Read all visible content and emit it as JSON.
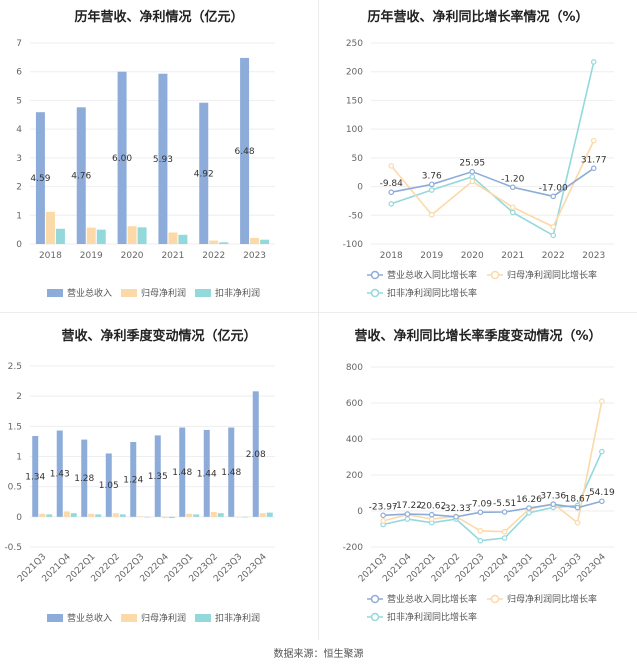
{
  "source_label": "数据来源：恒生聚源",
  "colors": {
    "revenue": "#8eacd9",
    "net_profit": "#fcd9a8",
    "deducted_profit": "#93d9dc",
    "axis_text": "#666666",
    "grid": "#eeeeee",
    "label": "#333333"
  },
  "chart_data": [
    {
      "type": "bar",
      "title": "历年营收、净利情况（亿元）",
      "categories": [
        "2018",
        "2019",
        "2020",
        "2021",
        "2022",
        "2023"
      ],
      "ylim": [
        0,
        7
      ],
      "yticks": [
        "0",
        "1",
        "2",
        "3",
        "4",
        "5",
        "6",
        "7"
      ],
      "series": [
        {
          "name": "营业总收入",
          "values": [
            4.59,
            4.76,
            6.0,
            5.93,
            4.92,
            6.48
          ]
        },
        {
          "name": "归母净利润",
          "values": [
            1.12,
            0.57,
            0.62,
            0.4,
            0.12,
            0.21
          ]
        },
        {
          "name": "扣非净利润",
          "values": [
            0.53,
            0.5,
            0.58,
            0.32,
            0.06,
            0.15
          ]
        }
      ],
      "data_labels": [
        "4.59",
        "4.76",
        "6.00",
        "5.93",
        "4.92",
        "6.48"
      ]
    },
    {
      "type": "line",
      "title": "历年营收、净利同比增长率情况（%）",
      "categories": [
        "2018",
        "2019",
        "2020",
        "2021",
        "2022",
        "2023"
      ],
      "ylim": [
        -100,
        250
      ],
      "yticks": [
        "-100",
        "-50",
        "0",
        "50",
        "100",
        "150",
        "200",
        "250"
      ],
      "series": [
        {
          "name": "营业总收入同比增长率",
          "values": [
            -9.84,
            3.76,
            25.95,
            -1.2,
            -17.0,
            31.77
          ]
        },
        {
          "name": "归母净利润同比增长率",
          "values": [
            36.0,
            -49.0,
            9.0,
            -36.0,
            -70.0,
            80.0
          ]
        },
        {
          "name": "扣非净利润同比增长率",
          "values": [
            -30.0,
            -6.0,
            17.0,
            -45.0,
            -85.0,
            217.0
          ]
        }
      ],
      "data_labels": [
        "-9.84",
        "3.76",
        "25.95",
        "-1.20",
        "-17.00",
        "31.77"
      ]
    },
    {
      "type": "bar",
      "title": "营收、净利季度变动情况（亿元）",
      "categories": [
        "2021Q3",
        "2021Q4",
        "2022Q1",
        "2022Q2",
        "2022Q3",
        "2022Q4",
        "2023Q1",
        "2023Q2",
        "2023Q3",
        "2023Q4"
      ],
      "ylim": [
        -0.5,
        2.5
      ],
      "yticks": [
        "-0.5",
        "0",
        "0.5",
        "1",
        "1.5",
        "2",
        "2.5"
      ],
      "series": [
        {
          "name": "营业总收入",
          "values": [
            1.34,
            1.43,
            1.28,
            1.05,
            1.24,
            1.35,
            1.48,
            1.44,
            1.48,
            2.08
          ]
        },
        {
          "name": "归母净利润",
          "values": [
            0.05,
            0.09,
            0.05,
            0.06,
            0.01,
            -0.02,
            0.05,
            0.08,
            -0.01,
            0.06
          ]
        },
        {
          "name": "扣非净利润",
          "values": [
            0.04,
            0.06,
            0.04,
            0.04,
            -0.01,
            -0.02,
            0.04,
            0.06,
            -0.01,
            0.07
          ]
        }
      ],
      "data_labels": [
        "1.34",
        "1.43",
        "1.28",
        "1.05",
        "1.24",
        "1.35",
        "1.48",
        "1.44",
        "1.48",
        "2.08"
      ]
    },
    {
      "type": "line",
      "title": "营收、净利同比增长率季度变动情况（%）",
      "categories": [
        "2021Q3",
        "2021Q4",
        "2022Q1",
        "2022Q2",
        "2022Q3",
        "2022Q4",
        "2023Q1",
        "2023Q2",
        "2023Q3",
        "2023Q4"
      ],
      "ylim": [
        -200,
        800
      ],
      "yticks": [
        "-200",
        "0",
        "200",
        "400",
        "600",
        "800"
      ],
      "series": [
        {
          "name": "营业总收入同比增长率",
          "values": [
            -23.97,
            -17.22,
            -20.62,
            -32.33,
            -7.09,
            -5.51,
            16.26,
            37.36,
            18.67,
            54.19
          ]
        },
        {
          "name": "归母净利润同比增长率",
          "values": [
            -55.0,
            -20.0,
            -45.0,
            -30.0,
            -110.0,
            -115.0,
            10.0,
            40.0,
            -65.0,
            610.0
          ]
        },
        {
          "name": "扣非净利润同比增长率",
          "values": [
            -75.0,
            -45.0,
            -65.0,
            -45.0,
            -165.0,
            -150.0,
            -10.0,
            20.0,
            30.0,
            330.0
          ]
        }
      ],
      "data_labels": [
        "-23.97",
        "-17.22",
        "-20.62",
        "-32.33",
        "-7.09",
        "-5.51",
        "16.26",
        "37.36",
        "18.67",
        "54.19"
      ]
    }
  ]
}
